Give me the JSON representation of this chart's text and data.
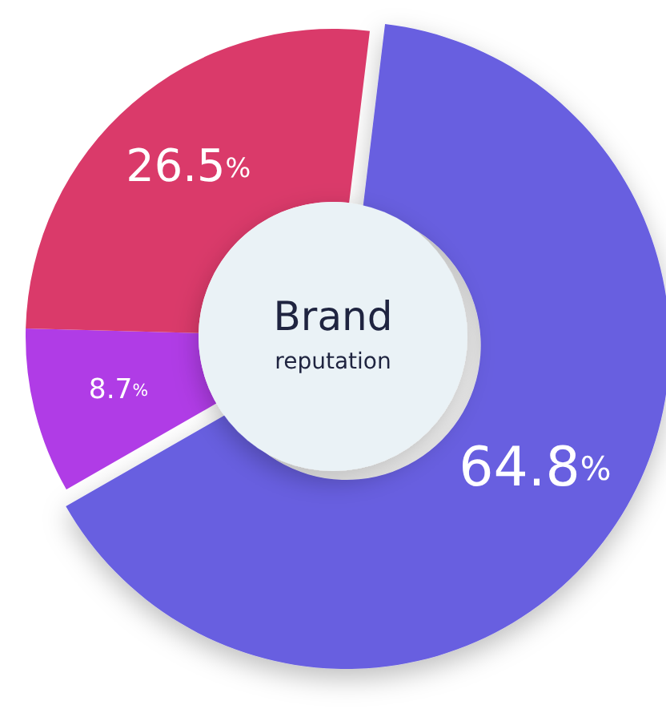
{
  "chart_data": {
    "type": "donut",
    "title": "Brand",
    "subtitle": "reputation",
    "categories": [
      null,
      null,
      null
    ],
    "values": [
      64.8,
      8.7,
      26.5
    ],
    "colors": [
      "#675ee0",
      "#b03ce6",
      "#da3a6a"
    ],
    "value_labels": [
      "64.8%",
      "8.7%",
      "26.5%"
    ]
  }
}
